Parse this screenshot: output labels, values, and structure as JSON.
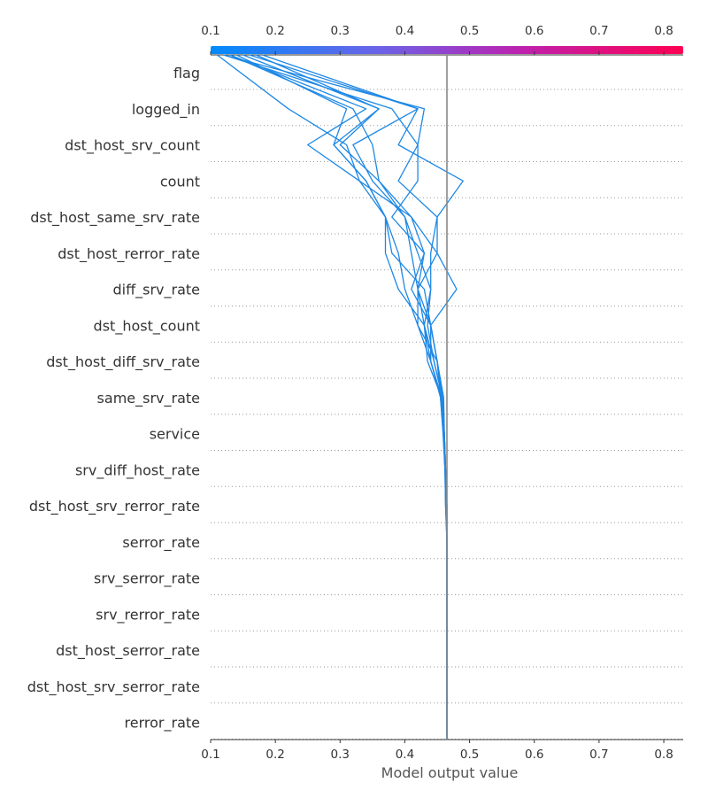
{
  "chart_data": {
    "type": "line",
    "subtype": "shap-decision-plot",
    "xlabel": "Model output value",
    "xlim": [
      0.1,
      0.83
    ],
    "x_ticks": [
      "0.1",
      "0.2",
      "0.3",
      "0.4",
      "0.5",
      "0.6",
      "0.7",
      "0.8"
    ],
    "x_tick_values": [
      0.1,
      0.2,
      0.3,
      0.4,
      0.5,
      0.6,
      0.7,
      0.8
    ],
    "base_value": 0.465,
    "colormap": [
      "#008bfb",
      "#7d5ce0",
      "#c21fa5",
      "#ff0052"
    ],
    "line_color": "#1e88e5",
    "features": [
      "flag",
      "logged_in",
      "dst_host_srv_count",
      "count",
      "dst_host_same_srv_rate",
      "dst_host_rerror_rate",
      "diff_srv_rate",
      "dst_host_count",
      "dst_host_diff_srv_rate",
      "same_srv_rate",
      "service",
      "srv_diff_host_rate",
      "dst_host_srv_rerror_rate",
      "serror_rate",
      "srv_serror_rate",
      "srv_rerror_rate",
      "dst_host_serror_rate",
      "dst_host_srv_serror_rate",
      "rerror_rate"
    ],
    "series": [
      {
        "values": [
          0.465,
          0.465,
          0.465,
          0.465,
          0.465,
          0.465,
          0.465,
          0.463,
          0.462,
          0.459,
          0.455,
          0.45,
          0.44,
          0.41,
          0.43,
          0.38,
          0.42,
          0.42,
          0.38,
          0.12
        ]
      },
      {
        "values": [
          0.465,
          0.465,
          0.465,
          0.465,
          0.465,
          0.465,
          0.465,
          0.464,
          0.463,
          0.46,
          0.458,
          0.445,
          0.43,
          0.39,
          0.37,
          0.37,
          0.34,
          0.29,
          0.31,
          0.14
        ]
      },
      {
        "values": [
          0.465,
          0.465,
          0.465,
          0.465,
          0.465,
          0.465,
          0.465,
          0.464,
          0.462,
          0.46,
          0.456,
          0.44,
          0.43,
          0.44,
          0.44,
          0.45,
          0.49,
          0.39,
          0.42,
          0.16
        ]
      },
      {
        "values": [
          0.465,
          0.465,
          0.465,
          0.465,
          0.465,
          0.465,
          0.465,
          0.465,
          0.463,
          0.461,
          0.457,
          0.44,
          0.44,
          0.43,
          0.38,
          0.37,
          0.33,
          0.25,
          0.34,
          0.13
        ]
      },
      {
        "values": [
          0.465,
          0.465,
          0.465,
          0.465,
          0.465,
          0.465,
          0.465,
          0.464,
          0.463,
          0.46,
          0.458,
          0.45,
          0.42,
          0.4,
          0.39,
          0.37,
          0.34,
          0.29,
          0.36,
          0.17
        ]
      },
      {
        "values": [
          0.465,
          0.465,
          0.465,
          0.465,
          0.465,
          0.465,
          0.465,
          0.465,
          0.463,
          0.461,
          0.458,
          0.445,
          0.435,
          0.44,
          0.42,
          0.4,
          0.35,
          0.32,
          0.42,
          0.18
        ]
      },
      {
        "values": [
          0.465,
          0.465,
          0.465,
          0.465,
          0.465,
          0.465,
          0.465,
          0.464,
          0.463,
          0.461,
          0.457,
          0.435,
          0.43,
          0.42,
          0.43,
          0.41,
          0.36,
          0.3,
          0.36,
          0.15
        ]
      },
      {
        "values": [
          0.465,
          0.465,
          0.465,
          0.465,
          0.465,
          0.465,
          0.465,
          0.465,
          0.463,
          0.461,
          0.46,
          0.45,
          0.44,
          0.48,
          0.45,
          0.45,
          0.39,
          0.42,
          0.43,
          0.12
        ]
      },
      {
        "values": [
          0.465,
          0.465,
          0.465,
          0.465,
          0.465,
          0.465,
          0.465,
          0.464,
          0.462,
          0.46,
          0.455,
          0.44,
          0.42,
          0.42,
          0.41,
          0.4,
          0.36,
          0.35,
          0.32,
          0.13
        ]
      },
      {
        "values": [
          0.465,
          0.465,
          0.465,
          0.465,
          0.465,
          0.465,
          0.465,
          0.463,
          0.462,
          0.46,
          0.458,
          0.45,
          0.44,
          0.42,
          0.45,
          0.41,
          0.33,
          0.31,
          0.22,
          0.11
        ]
      }
    ]
  }
}
